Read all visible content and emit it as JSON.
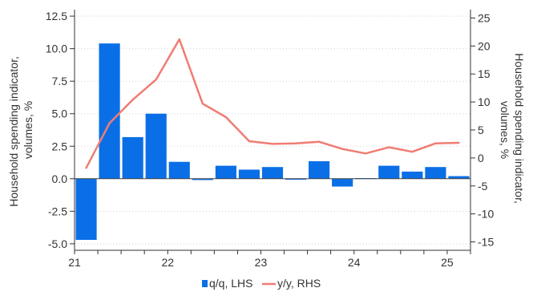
{
  "chart_data": {
    "type": "bar+line",
    "x_tick_labels": [
      "21",
      "22",
      "23",
      "24",
      "25"
    ],
    "y_left": {
      "label": "Household spending indicator, volumes, %",
      "label_lines": [
        "Household spending indicator,",
        "volumes, %"
      ],
      "ticks": [
        "12.5",
        "10.0",
        "7.5",
        "5.0",
        "2.5",
        "0.0",
        "-2.5",
        "-5.0"
      ],
      "range": [
        -5.5,
        13.0
      ]
    },
    "y_right": {
      "label": "Household spending indicator, volumes, %",
      "label_lines": [
        "Household spending indicator,",
        "volumes, %"
      ],
      "ticks": [
        "25",
        "20",
        "15",
        "10",
        "5",
        "0",
        "-5",
        "-10",
        "-15"
      ],
      "range": [
        -16.5,
        26.5
      ]
    },
    "series": [
      {
        "name": "q/q, LHS",
        "type": "bar",
        "axis": "left",
        "color": "#0a6fe6",
        "values": [
          -4.7,
          10.4,
          3.2,
          5.0,
          1.3,
          -0.1,
          1.0,
          0.7,
          0.9,
          -0.05,
          1.35,
          -0.6,
          0.05,
          1.0,
          0.55,
          0.9,
          0.2
        ]
      },
      {
        "name": "y/y, RHS",
        "type": "line",
        "axis": "right",
        "color": "#f07c73",
        "values": [
          -1.8,
          6.2,
          10.4,
          14.0,
          21.2,
          9.7,
          7.3,
          3.0,
          2.5,
          2.6,
          2.9,
          1.6,
          0.8,
          1.9,
          1.1,
          2.6,
          2.7
        ]
      }
    ],
    "grid": true,
    "legend_position": "bottom-center"
  }
}
